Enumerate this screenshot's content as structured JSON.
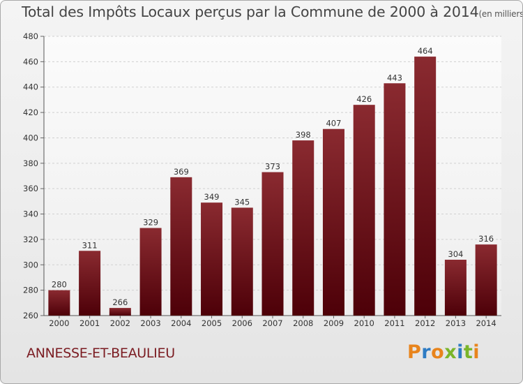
{
  "title": "Total des Impôts Locaux perçus par la Commune de 2000 à 2014",
  "subtitle": "(en milliers d'€)",
  "commune": "ANNESSE-ET-BEAULIEU",
  "logo_text": "Proxiti",
  "colors": {
    "bar_top": "#8a2a30",
    "bar_bottom": "#4d0008",
    "commune_text": "#7b1c22",
    "logo": [
      "#e8841c",
      "#2e7cc4",
      "#e8841c",
      "#7ab52a",
      "#2e7cc4",
      "#7ab52a",
      "#e8841c"
    ]
  },
  "chart_data": {
    "type": "bar",
    "categories": [
      "2000",
      "2001",
      "2002",
      "2003",
      "2004",
      "2005",
      "2006",
      "2007",
      "2008",
      "2009",
      "2010",
      "2011",
      "2012",
      "2013",
      "2014"
    ],
    "values": [
      280,
      311,
      266,
      329,
      369,
      349,
      345,
      373,
      398,
      407,
      426,
      443,
      464,
      304,
      316
    ],
    "ylim": [
      260,
      480
    ],
    "yticks": [
      260,
      280,
      300,
      320,
      340,
      360,
      380,
      400,
      420,
      440,
      460,
      480
    ],
    "grid": true,
    "title": "Total des Impôts Locaux perçus par la Commune de 2000 à 2014",
    "xlabel": "",
    "ylabel": ""
  }
}
